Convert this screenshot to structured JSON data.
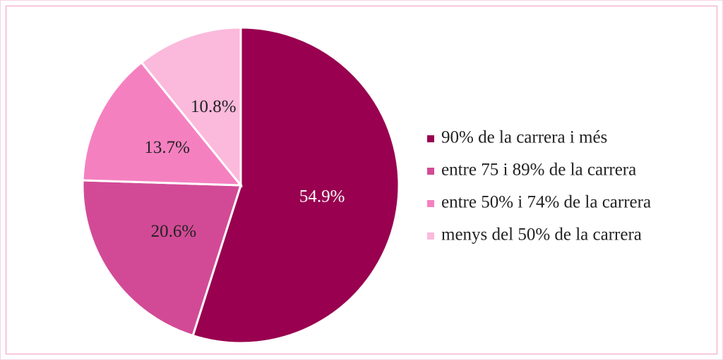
{
  "chart_data": {
    "type": "pie",
    "categories": [
      "90% de la carrera i més",
      "entre 75 i 89% de la carrera",
      "entre 50% i 74% de la carrera",
      "menys del 50% de la carrera"
    ],
    "values": [
      54.9,
      20.6,
      13.7,
      10.8
    ],
    "value_labels": [
      "54.9%",
      "20.6%",
      "13.7%",
      "10.8%"
    ],
    "colors": [
      "#990050",
      "#d24a96",
      "#f580c0",
      "#fbb9dc"
    ],
    "legend": "right"
  }
}
